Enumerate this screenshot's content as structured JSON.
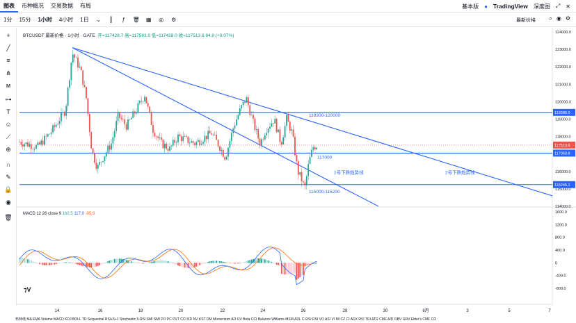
{
  "nav": {
    "tabs": [
      "图表",
      "币种概况",
      "交易数据",
      "布局"
    ],
    "mode": "基本版",
    "brand": "TradingView",
    "depth": "深度图"
  },
  "toolbar": {
    "intervals": [
      "1分",
      "15分",
      "1小时",
      "4小时",
      "1日"
    ],
    "active_interval": "1小时",
    "latest_price_label": "最新价格"
  },
  "legend": {
    "symbol": "BTCUSDT 最新价格 · 1小时 · GATE",
    "open": "开=117428.7",
    "high": "高=117563.0",
    "low": "低=117428.0",
    "close": "收=117513.6",
    "change": "84.8 (+0.07%)"
  },
  "macd": {
    "label": "MACD 12 26 close 9",
    "v1": "162.5",
    "v2": "117.0",
    "v3": "-85.9"
  },
  "chart_data": {
    "type": "line",
    "price_axis": [
      "124000.0",
      "123000.0",
      "122000.0",
      "121000.0",
      "120000.0",
      "119000.0",
      "118000.0",
      "117000.0",
      "116000.0",
      "115000.0",
      "114000.0"
    ],
    "macd_axis": [
      "1600.0",
      "1200.0",
      "800.0",
      "400.0",
      "0",
      "-400.0",
      "-800.0"
    ],
    "x_ticks": [
      "14",
      "16",
      "18",
      "20",
      "22",
      "24",
      "26",
      "28",
      "30",
      "8月",
      "3",
      "5",
      "7"
    ],
    "price_labels": [
      {
        "value": 119386.0,
        "text": "119386.0",
        "color": "#2962ff"
      },
      {
        "value": 117513.6,
        "text": "117513.6",
        "color": "#ef5350"
      },
      {
        "value": 117050.8,
        "text": "117050.8",
        "color": "#2962ff"
      },
      {
        "value": 115245.1,
        "text": "115245.1",
        "color": "#2962ff"
      }
    ],
    "annotations": [
      "119300-120000",
      "117000",
      "1号下跌趋势线",
      "2号下跌趋势线",
      "115000-115200"
    ],
    "ylim": [
      114000,
      124000
    ]
  },
  "bottom": "布林线 MA EMA Volume MACD KDJ BOLL TD Sequential RSI+5+1 Stochastic 5-RSI SMI SMI PO PC PVT CCI KD NV KST DM Momentum AO UV Beta CCI Balance Williams MSM ADL C-RSI RSI VO ASI VI MI CZ CI ADX RVI TRI ATR CMF A/D OBV GRV Elder's CMF CO"
}
